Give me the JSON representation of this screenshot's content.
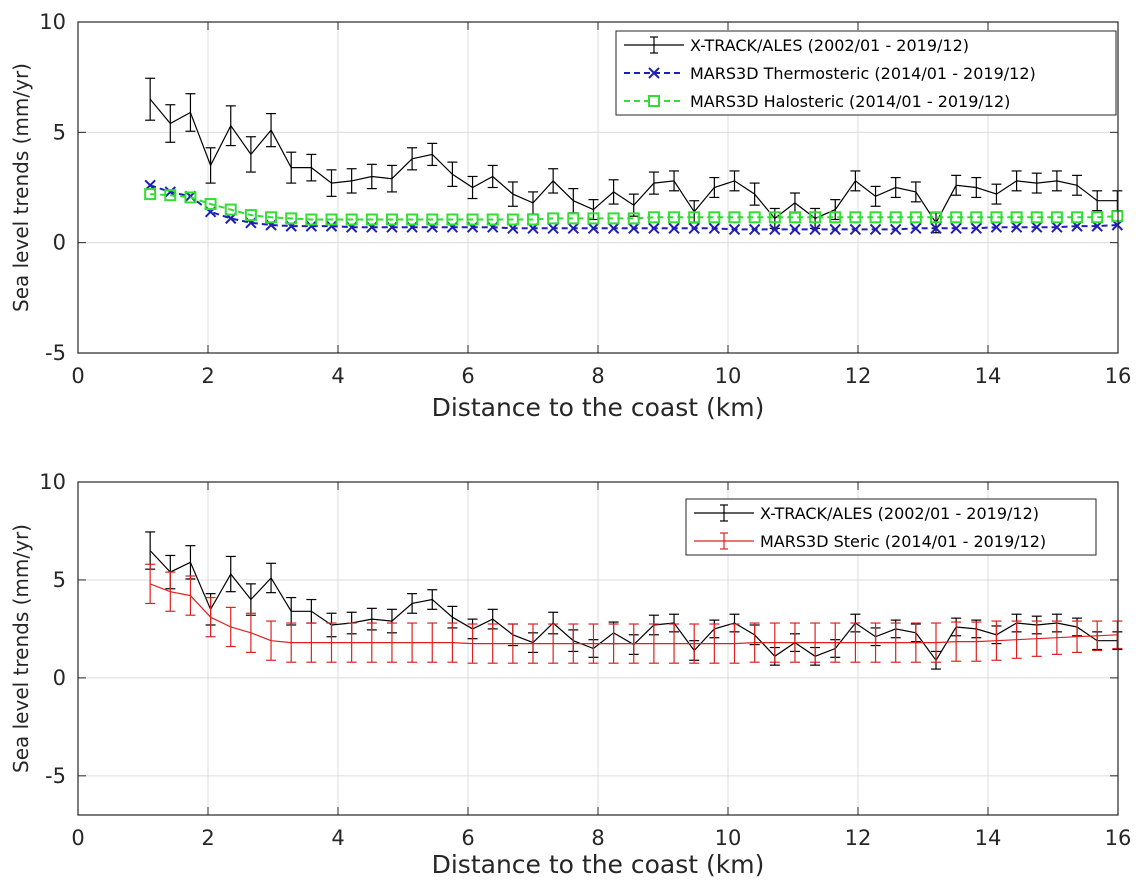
{
  "chart_data": [
    {
      "type": "line",
      "xlabel": "Distance to the coast (km)",
      "ylabel": "Sea level trends (mm/yr)",
      "xlim": [
        0,
        16
      ],
      "ylim": [
        -5,
        10
      ],
      "xticks": [
        "0",
        "2",
        "4",
        "6",
        "8",
        "10",
        "12",
        "14",
        "16"
      ],
      "yticks": [
        "-5",
        "0",
        "5",
        "10"
      ],
      "grid": true,
      "legend_position": "top-right",
      "x": [
        1.11,
        1.42,
        1.73,
        2.04,
        2.35,
        2.66,
        2.97,
        3.28,
        3.59,
        3.9,
        4.21,
        4.52,
        4.83,
        5.14,
        5.45,
        5.76,
        6.07,
        6.38,
        6.69,
        7.0,
        7.31,
        7.62,
        7.93,
        8.24,
        8.55,
        8.86,
        9.17,
        9.48,
        9.79,
        10.1,
        10.41,
        10.72,
        11.03,
        11.34,
        11.65,
        11.96,
        12.27,
        12.58,
        12.89,
        13.2,
        13.51,
        13.82,
        14.13,
        14.44,
        14.75,
        15.06,
        15.37,
        15.68,
        15.99
      ],
      "series": [
        {
          "name": "X-TRACK/ALES (2002/01 - 2019/12)",
          "color": "#000000",
          "style": "solid-errorbar",
          "values": [
            6.5,
            5.4,
            5.9,
            3.5,
            5.3,
            4.0,
            5.1,
            3.4,
            3.4,
            2.7,
            2.8,
            3.0,
            2.9,
            3.8,
            4.0,
            3.1,
            2.5,
            3.0,
            2.2,
            1.8,
            2.8,
            1.9,
            1.5,
            2.3,
            1.7,
            2.7,
            2.8,
            1.4,
            2.5,
            2.8,
            2.2,
            1.1,
            1.8,
            1.1,
            1.5,
            2.8,
            2.1,
            2.5,
            2.3,
            0.9,
            2.6,
            2.5,
            2.2,
            2.8,
            2.7,
            2.8,
            2.6,
            1.9,
            1.9
          ],
          "errors": [
            0.95,
            0.85,
            0.85,
            0.8,
            0.9,
            0.8,
            0.75,
            0.7,
            0.6,
            0.6,
            0.55,
            0.55,
            0.6,
            0.5,
            0.5,
            0.55,
            0.5,
            0.5,
            0.55,
            0.5,
            0.55,
            0.55,
            0.45,
            0.55,
            0.5,
            0.5,
            0.45,
            0.5,
            0.45,
            0.45,
            0.5,
            0.45,
            0.45,
            0.45,
            0.45,
            0.45,
            0.45,
            0.45,
            0.45,
            0.45,
            0.45,
            0.45,
            0.45,
            0.45,
            0.45,
            0.45,
            0.45,
            0.45,
            0.45
          ]
        },
        {
          "name": "MARS3D Thermosteric (2014/01 - 2019/12)",
          "color": "#1f1fb8",
          "style": "dashed-x",
          "values": [
            2.6,
            2.3,
            2.1,
            1.4,
            1.1,
            0.9,
            0.8,
            0.75,
            0.75,
            0.75,
            0.7,
            0.7,
            0.7,
            0.7,
            0.7,
            0.7,
            0.7,
            0.7,
            0.65,
            0.65,
            0.65,
            0.65,
            0.65,
            0.65,
            0.65,
            0.65,
            0.65,
            0.65,
            0.65,
            0.6,
            0.6,
            0.6,
            0.6,
            0.6,
            0.6,
            0.6,
            0.6,
            0.6,
            0.65,
            0.65,
            0.65,
            0.65,
            0.7,
            0.7,
            0.7,
            0.7,
            0.75,
            0.75,
            0.8
          ]
        },
        {
          "name": "MARS3D Halosteric (2014/01 - 2019/12)",
          "color": "#33dd33",
          "style": "dashed-square",
          "values": [
            2.2,
            2.15,
            2.05,
            1.75,
            1.5,
            1.25,
            1.15,
            1.1,
            1.05,
            1.05,
            1.05,
            1.05,
            1.05,
            1.05,
            1.05,
            1.05,
            1.05,
            1.05,
            1.05,
            1.05,
            1.1,
            1.1,
            1.1,
            1.1,
            1.1,
            1.15,
            1.15,
            1.15,
            1.15,
            1.15,
            1.15,
            1.15,
            1.15,
            1.15,
            1.15,
            1.15,
            1.15,
            1.15,
            1.15,
            1.15,
            1.15,
            1.15,
            1.15,
            1.15,
            1.15,
            1.15,
            1.15,
            1.15,
            1.2
          ]
        }
      ]
    },
    {
      "type": "line",
      "xlabel": "Distance to the coast (km)",
      "ylabel": "Sea level trends (mm/yr)",
      "xlim": [
        0,
        16
      ],
      "ylim": [
        -7,
        10
      ],
      "xticks": [
        "0",
        "2",
        "4",
        "6",
        "8",
        "10",
        "12",
        "14",
        "16"
      ],
      "yticks": [
        "-5",
        "0",
        "5",
        "10"
      ],
      "grid": true,
      "legend_position": "top-right",
      "x": [
        1.11,
        1.42,
        1.73,
        2.04,
        2.35,
        2.66,
        2.97,
        3.28,
        3.59,
        3.9,
        4.21,
        4.52,
        4.83,
        5.14,
        5.45,
        5.76,
        6.07,
        6.38,
        6.69,
        7.0,
        7.31,
        7.62,
        7.93,
        8.24,
        8.55,
        8.86,
        9.17,
        9.48,
        9.79,
        10.1,
        10.41,
        10.72,
        11.03,
        11.34,
        11.65,
        11.96,
        12.27,
        12.58,
        12.89,
        13.2,
        13.51,
        13.82,
        14.13,
        14.44,
        14.75,
        15.06,
        15.37,
        15.68,
        15.99
      ],
      "series": [
        {
          "name": "X-TRACK/ALES (2002/01 - 2019/12)",
          "color": "#000000",
          "style": "solid-errorbar",
          "values": [
            6.5,
            5.4,
            5.9,
            3.5,
            5.3,
            4.0,
            5.1,
            3.4,
            3.4,
            2.7,
            2.8,
            3.0,
            2.9,
            3.8,
            4.0,
            3.1,
            2.5,
            3.0,
            2.2,
            1.8,
            2.8,
            1.9,
            1.5,
            2.3,
            1.7,
            2.7,
            2.8,
            1.4,
            2.5,
            2.8,
            2.2,
            1.1,
            1.8,
            1.1,
            1.5,
            2.8,
            2.1,
            2.5,
            2.3,
            0.9,
            2.6,
            2.5,
            2.2,
            2.8,
            2.7,
            2.8,
            2.6,
            1.9,
            1.9
          ],
          "errors": [
            0.95,
            0.85,
            0.85,
            0.8,
            0.9,
            0.8,
            0.75,
            0.7,
            0.6,
            0.6,
            0.55,
            0.55,
            0.6,
            0.5,
            0.5,
            0.55,
            0.5,
            0.5,
            0.55,
            0.5,
            0.55,
            0.55,
            0.45,
            0.55,
            0.5,
            0.5,
            0.45,
            0.5,
            0.45,
            0.45,
            0.5,
            0.45,
            0.45,
            0.45,
            0.45,
            0.45,
            0.45,
            0.45,
            0.45,
            0.45,
            0.45,
            0.45,
            0.45,
            0.45,
            0.45,
            0.45,
            0.45,
            0.45,
            0.45
          ]
        },
        {
          "name": "MARS3D Steric (2014/01 - 2019/12)",
          "color": "#e02020",
          "style": "solid-errorbar",
          "values": [
            4.8,
            4.4,
            4.2,
            3.1,
            2.6,
            2.3,
            1.9,
            1.8,
            1.8,
            1.8,
            1.8,
            1.8,
            1.8,
            1.8,
            1.8,
            1.8,
            1.75,
            1.75,
            1.75,
            1.75,
            1.75,
            1.75,
            1.75,
            1.75,
            1.75,
            1.75,
            1.75,
            1.75,
            1.75,
            1.75,
            1.8,
            1.8,
            1.8,
            1.8,
            1.8,
            1.8,
            1.8,
            1.8,
            1.8,
            1.8,
            1.85,
            1.85,
            1.9,
            1.95,
            2.0,
            2.05,
            2.1,
            2.15,
            2.2
          ],
          "errors": [
            1.0,
            1.0,
            1.0,
            1.0,
            1.0,
            1.0,
            1.0,
            1.0,
            1.0,
            1.0,
            1.0,
            1.0,
            1.0,
            1.0,
            1.0,
            1.0,
            1.0,
            1.0,
            1.0,
            1.0,
            1.0,
            1.0,
            1.0,
            1.0,
            1.0,
            1.0,
            1.0,
            1.0,
            1.0,
            1.0,
            1.0,
            1.0,
            1.0,
            1.0,
            1.0,
            1.0,
            1.0,
            1.0,
            1.0,
            1.0,
            1.0,
            1.0,
            1.0,
            0.95,
            0.9,
            0.85,
            0.8,
            0.75,
            0.7
          ]
        }
      ]
    }
  ]
}
